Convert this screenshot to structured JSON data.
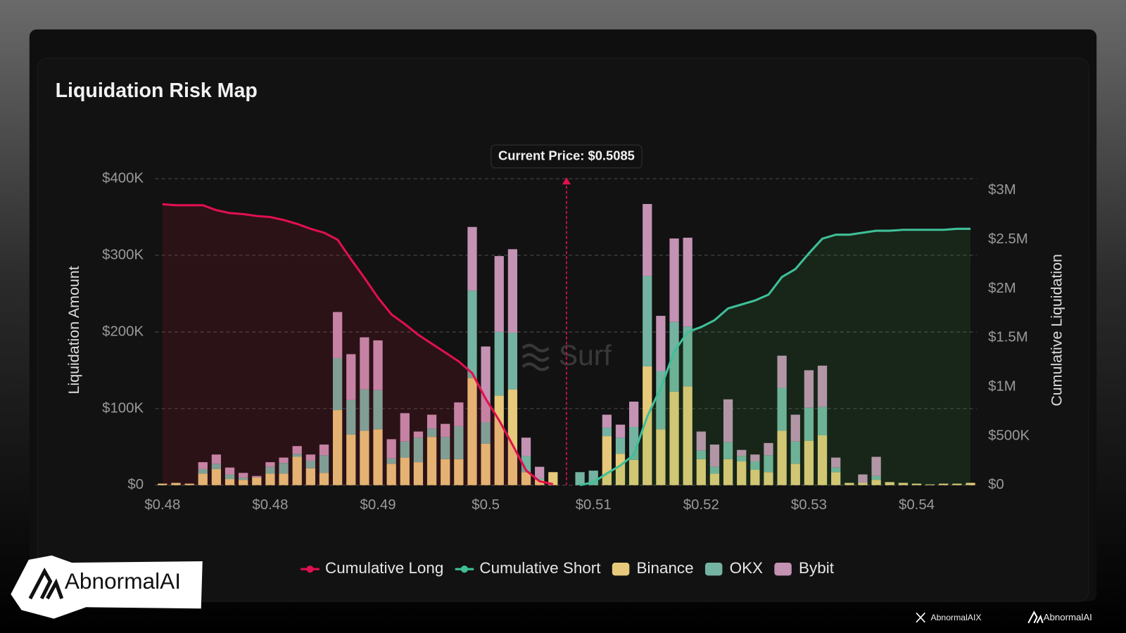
{
  "chart_data": {
    "type": "bar",
    "title": "Liquidation Risk Map",
    "stacked": true,
    "watermark": "Surf",
    "y_label": "Liquidation Amount",
    "y2_label": "Cumulative Liquidation",
    "current_price": {
      "value": 0.5085,
      "label": "Current Price: $0.5085"
    },
    "legend": "bottom",
    "grid": true,
    "xlim": [
      0.4749,
      0.542
    ],
    "xticks": [
      {
        "value": 0.4755,
        "label": "$0.48"
      },
      {
        "value": 0.4843,
        "label": "$0.48"
      },
      {
        "value": 0.4931,
        "label": "$0.49"
      },
      {
        "value": 0.5019,
        "label": "$0.5"
      },
      {
        "value": 0.5107,
        "label": "$0.51"
      },
      {
        "value": 0.5195,
        "label": "$0.52"
      },
      {
        "value": 0.5283,
        "label": "$0.53"
      },
      {
        "value": 0.5371,
        "label": "$0.54"
      }
    ],
    "ylim": [
      0,
      400000
    ],
    "yticks": [
      {
        "value": 0,
        "label": "$0"
      },
      {
        "value": 100000,
        "label": "$100K"
      },
      {
        "value": 200000,
        "label": "$200K"
      },
      {
        "value": 300000,
        "label": "$300K"
      },
      {
        "value": 400000,
        "label": "$400K"
      }
    ],
    "y2lim": [
      0,
      3120000
    ],
    "y2ticks": [
      {
        "value": 0,
        "label": "$0"
      },
      {
        "value": 500000,
        "label": "$500K"
      },
      {
        "value": 1000000,
        "label": "$1M"
      },
      {
        "value": 1500000,
        "label": "$1.5M"
      },
      {
        "value": 2000000,
        "label": "$2M"
      },
      {
        "value": 2500000,
        "label": "$2.5M"
      },
      {
        "value": 3000000,
        "label": "$3M"
      }
    ],
    "x": [
      0.4755,
      0.4766,
      0.4777,
      0.4788,
      0.4799,
      0.481,
      0.4821,
      0.4832,
      0.4843,
      0.4854,
      0.4865,
      0.4876,
      0.4887,
      0.4898,
      0.4909,
      0.492,
      0.4931,
      0.4942,
      0.4953,
      0.4964,
      0.4975,
      0.4986,
      0.4997,
      0.5008,
      0.5019,
      0.503,
      0.5041,
      0.5052,
      0.5063,
      0.5074,
      0.5096,
      0.5107,
      0.5118,
      0.5129,
      0.514,
      0.5151,
      0.5162,
      0.5173,
      0.5184,
      0.5195,
      0.5206,
      0.5217,
      0.5228,
      0.5239,
      0.525,
      0.5261,
      0.5272,
      0.5283,
      0.5294,
      0.5305,
      0.5316,
      0.5327,
      0.5338,
      0.5349,
      0.536,
      0.5371,
      0.5382,
      0.5393,
      0.5404,
      0.5415
    ],
    "series": [
      {
        "name": "Cumulative Long",
        "type": "line",
        "axis": "y2",
        "color": "#e0104f",
        "area_color": "#dc143c",
        "values": [
          2860000,
          2850000,
          2850000,
          2850000,
          2800000,
          2770000,
          2760000,
          2740000,
          2730000,
          2700000,
          2660000,
          2610000,
          2570000,
          2500000,
          2300000,
          2110000,
          1910000,
          1740000,
          1640000,
          1530000,
          1440000,
          1350000,
          1260000,
          1140000,
          880000,
          660000,
          410000,
          150000,
          40000,
          10000,
          null,
          null,
          null,
          null,
          null,
          null,
          null,
          null,
          null,
          null,
          null,
          null,
          null,
          null,
          null,
          null,
          null,
          null,
          null,
          null,
          null,
          null,
          null,
          null,
          null,
          null,
          null,
          null,
          null,
          null
        ]
      },
      {
        "name": "Cumulative Short",
        "type": "line",
        "axis": "y2",
        "color": "#3fbf98",
        "area_color": "#3cb44b",
        "values": [
          null,
          null,
          null,
          null,
          null,
          null,
          null,
          null,
          null,
          null,
          null,
          null,
          null,
          null,
          null,
          null,
          null,
          null,
          null,
          null,
          null,
          null,
          null,
          null,
          null,
          null,
          null,
          null,
          null,
          null,
          0,
          30000,
          120000,
          200000,
          310000,
          700000,
          990000,
          1360000,
          1560000,
          1610000,
          1680000,
          1800000,
          1840000,
          1880000,
          1940000,
          2120000,
          2200000,
          2360000,
          2510000,
          2550000,
          2550000,
          2570000,
          2590000,
          2590000,
          2600000,
          2600000,
          2600000,
          2600000,
          2610000,
          2610000
        ]
      },
      {
        "name": "Binance",
        "type": "bar",
        "color": "#e6c97a",
        "values": [
          2000,
          3000,
          2000,
          15000,
          21000,
          8000,
          7000,
          10000,
          15000,
          15000,
          37000,
          22000,
          16000,
          98000,
          66000,
          71000,
          73000,
          28000,
          36000,
          30000,
          63000,
          34000,
          34000,
          140000,
          54000,
          117000,
          125000,
          17000,
          7000,
          17000,
          0,
          0,
          64000,
          41000,
          33000,
          155000,
          73000,
          122000,
          129000,
          34000,
          15000,
          34000,
          31000,
          20000,
          17000,
          71000,
          28000,
          58000,
          65000,
          17000,
          3000,
          3000,
          7000,
          4000,
          3000,
          2000,
          1000,
          2000,
          2000,
          3000
        ]
      },
      {
        "name": "OKX",
        "type": "bar",
        "color": "#74b3a1",
        "values": [
          0,
          0,
          0,
          6000,
          7000,
          6000,
          3000,
          0,
          9000,
          14000,
          4000,
          10000,
          23000,
          68000,
          45000,
          54000,
          51000,
          7000,
          21000,
          32000,
          11000,
          29000,
          43000,
          114000,
          28000,
          83000,
          74000,
          21000,
          2000,
          0,
          17000,
          19000,
          11000,
          21000,
          43000,
          118000,
          76000,
          91000,
          78000,
          11000,
          9000,
          22000,
          7000,
          11000,
          22000,
          56000,
          29000,
          43000,
          37000,
          6000,
          0,
          0,
          5000,
          0,
          0,
          0,
          0,
          0,
          0,
          0
        ]
      },
      {
        "name": "Bybit",
        "type": "bar",
        "color": "#c492b3",
        "values": [
          0,
          0,
          0,
          9000,
          12000,
          9000,
          6000,
          2000,
          6000,
          7000,
          10000,
          8000,
          14000,
          60000,
          60000,
          68000,
          65000,
          25000,
          37000,
          8000,
          18000,
          17000,
          31000,
          83000,
          99000,
          99000,
          109000,
          24000,
          15000,
          0,
          0,
          0,
          17000,
          17000,
          33000,
          94000,
          72000,
          109000,
          116000,
          25000,
          29000,
          56000,
          8000,
          9000,
          16000,
          42000,
          35000,
          49000,
          54000,
          13000,
          0,
          11000,
          25000,
          0,
          0,
          0,
          0,
          0,
          0,
          0
        ]
      }
    ]
  },
  "branding": {
    "logo": "AbnormalAI",
    "x_handle": "AbnormalAIX",
    "footer_logo": "AbnormalAI"
  }
}
